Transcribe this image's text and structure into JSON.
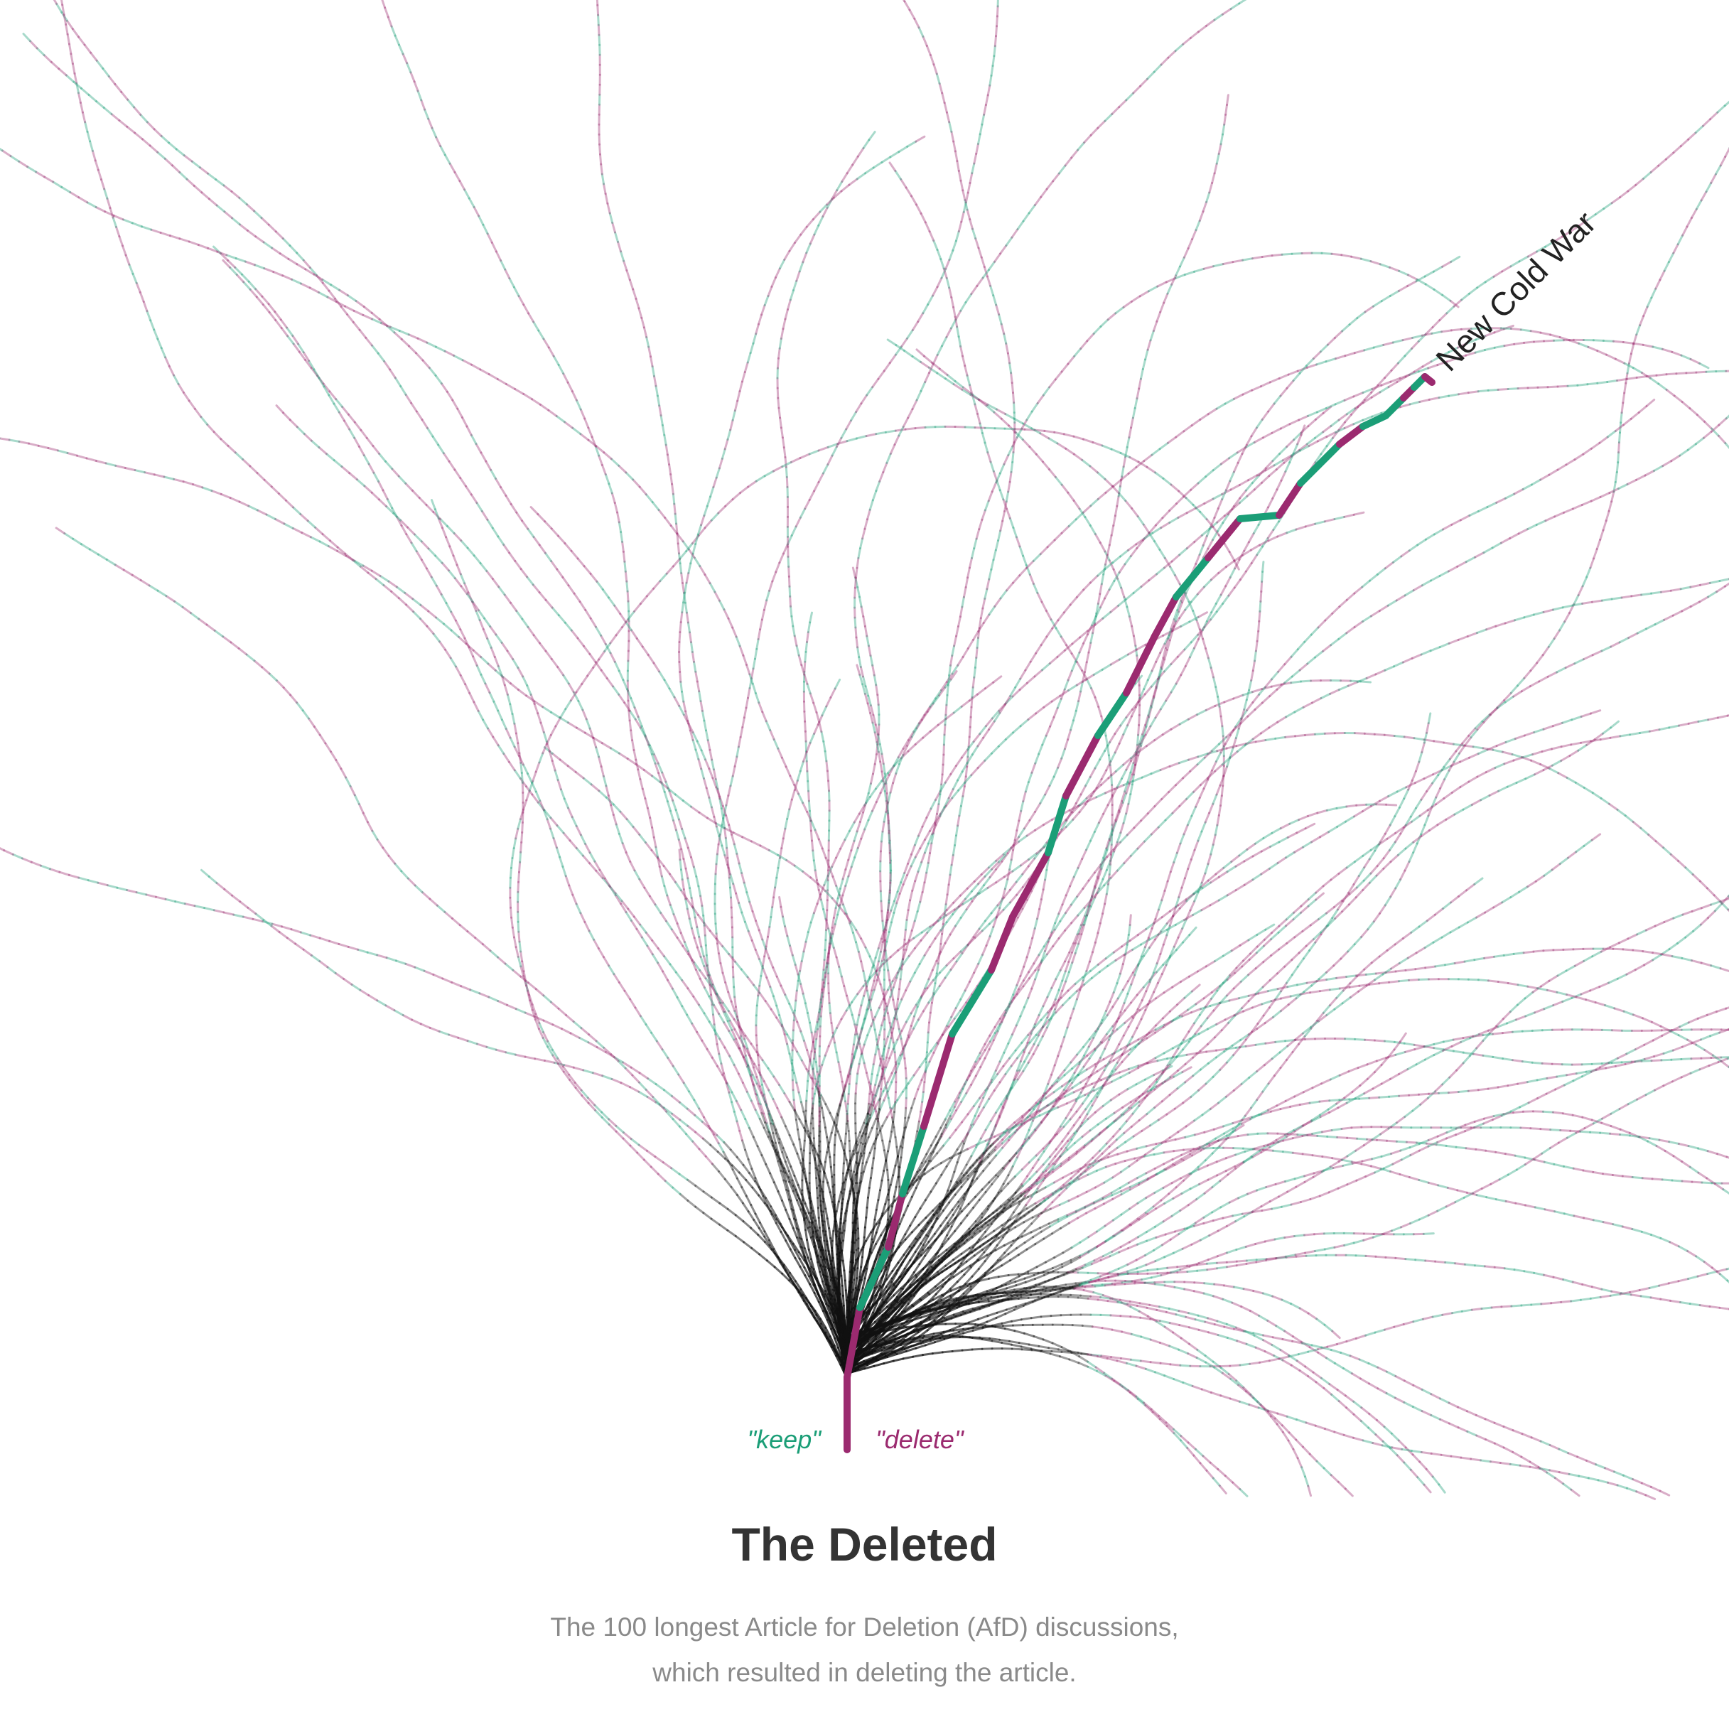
{
  "title": "The Deleted",
  "subtitle": {
    "line1": "The 100 longest Article for Deletion (AfD) discussions,",
    "line2": "which resulted in deleting the article."
  },
  "legend": {
    "keep": "\"keep\"",
    "delete": "\"delete\""
  },
  "colors": {
    "keep": "#1b9e77",
    "delete": "#9b2a6f",
    "trunk": "#111111",
    "background": "#ffffff",
    "title": "#333333",
    "subtitle": "#8a8a8a"
  },
  "chart_data": {
    "type": "tree",
    "highlight": {
      "label": "New Cold War",
      "votes": [
        "delete",
        "delete",
        "keep",
        "delete",
        "keep",
        "delete",
        "keep",
        "delete",
        "delete",
        "keep",
        "delete",
        "keep",
        "delete",
        "delete",
        "keep",
        "delete",
        "keep",
        "delete",
        "keep",
        "keep",
        "delete",
        "keep",
        "keep",
        "delete",
        "keep",
        "delete",
        "keep"
      ]
    },
    "discussion_count": 100
  }
}
